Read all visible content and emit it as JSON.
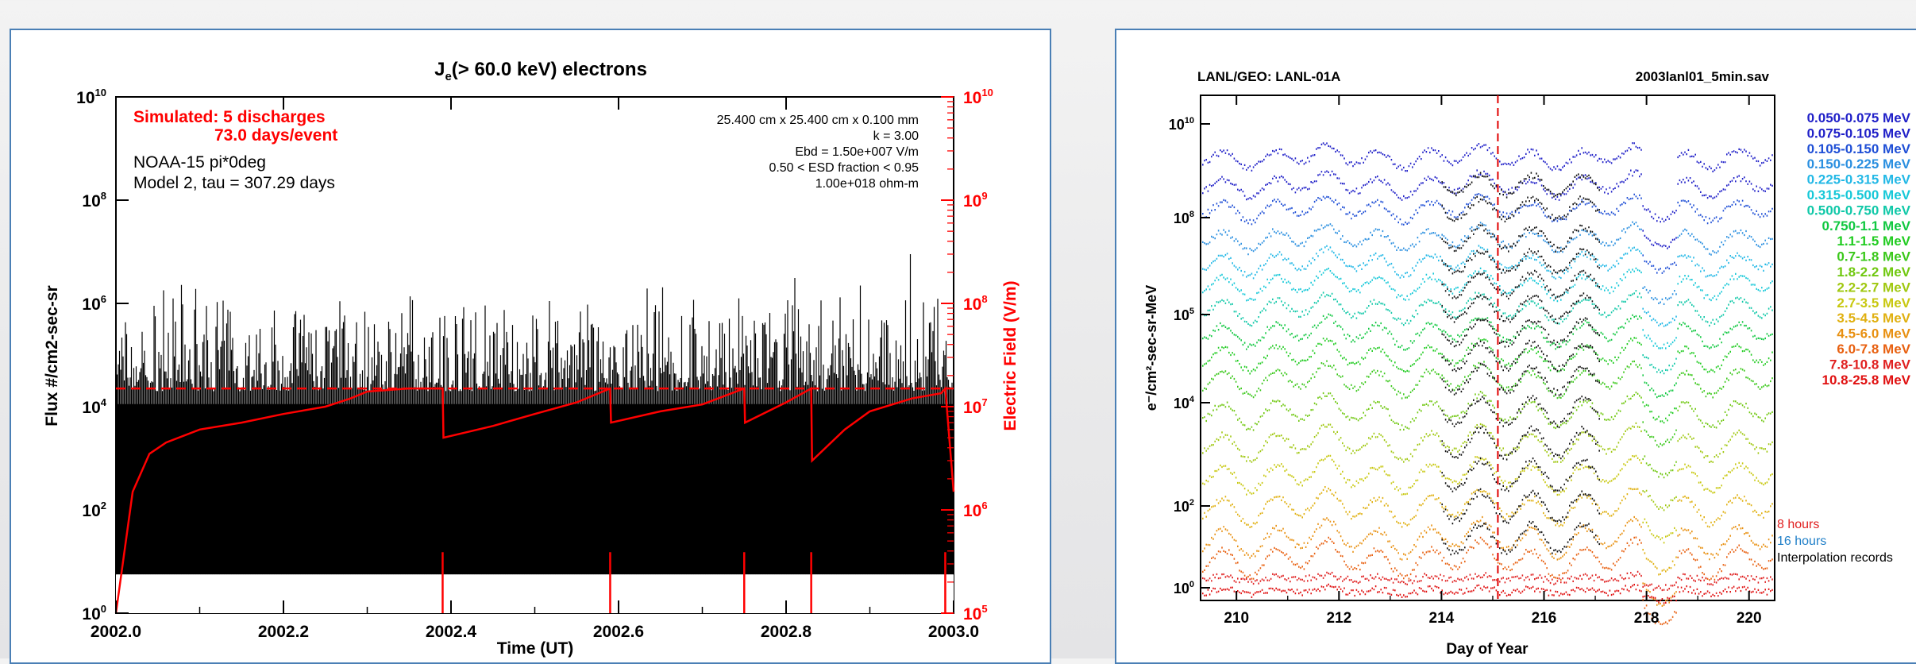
{
  "left_chart": {
    "title_main": "J",
    "title_sub": "e",
    "title_rest": "(> 60.0 keV) electrons",
    "annotation_red_1": "Simulated:  5 discharges",
    "annotation_red_2": "73.0 days/event",
    "annotation_black_1": "NOAA-15 pi*0deg",
    "annotation_black_2": "Model 2, tau =    307.29 days",
    "params": [
      "25.400 cm x  25.400 cm x   0.100 mm",
      "k =   3.00",
      "Ebd =  1.50e+007 V/m",
      "0.50 < ESD fraction <   0.95",
      "1.00e+018 ohm-m"
    ],
    "xlabel": "Time (UT)",
    "ylabel_left": "Flux #/cm2-sec-sr",
    "ylabel_right": "Electric Field (V/m)",
    "x_ticks": [
      "2002.0",
      "2002.2",
      "2002.4",
      "2002.6",
      "2002.8",
      "2003.0"
    ],
    "y_left_ticks": [
      {
        "base": "10",
        "exp": "0"
      },
      {
        "base": "10",
        "exp": "2"
      },
      {
        "base": "10",
        "exp": "4"
      },
      {
        "base": "10",
        "exp": "6"
      },
      {
        "base": "10",
        "exp": "8"
      },
      {
        "base": "10",
        "exp": "10"
      }
    ],
    "y_right_ticks": [
      {
        "base": "10",
        "exp": "5"
      },
      {
        "base": "10",
        "exp": "6"
      },
      {
        "base": "10",
        "exp": "7"
      },
      {
        "base": "10",
        "exp": "8"
      },
      {
        "base": "10",
        "exp": "9"
      },
      {
        "base": "10",
        "exp": "10"
      }
    ]
  },
  "right_chart": {
    "header_left": "LANL/GEO: LANL-01A",
    "header_right": "2003lanl01_5min.sav",
    "xlabel": "Day of Year",
    "ylabel": "e⁻/cm²-sec-sr-MeV",
    "x_ticks": [
      "210",
      "212",
      "214",
      "216",
      "218",
      "220"
    ],
    "y_ticks": [
      {
        "base": "10",
        "exp": "0"
      },
      {
        "base": "10",
        "exp": "2"
      },
      {
        "base": "10",
        "exp": "4"
      },
      {
        "base": "10",
        "exp": "5"
      },
      {
        "base": "10",
        "exp": "8"
      },
      {
        "base": "10",
        "exp": "10"
      }
    ],
    "legend": [
      {
        "label": "0.050-0.075 MeV",
        "color": "#2020c8"
      },
      {
        "label": "0.075-0.105 MeV",
        "color": "#2020c8"
      },
      {
        "label": "0.105-0.150 MeV",
        "color": "#1f4fd6"
      },
      {
        "label": "0.150-0.225 MeV",
        "color": "#2a8fe0"
      },
      {
        "label": "0.225-0.315 MeV",
        "color": "#22b8e6"
      },
      {
        "label": "0.315-0.500 MeV",
        "color": "#16c8d8"
      },
      {
        "label": "0.500-0.750 MeV",
        "color": "#10c8a8"
      },
      {
        "label": "0.750-1.1 MeV",
        "color": "#10c840"
      },
      {
        "label": "1.1-1.5 MeV",
        "color": "#22cc22"
      },
      {
        "label": "0.7-1.8 MeV",
        "color": "#3ac81a"
      },
      {
        "label": "1.8-2.2 MeV",
        "color": "#70c810"
      },
      {
        "label": "2.2-2.7 MeV",
        "color": "#a0c810"
      },
      {
        "label": "2.7-3.5 MeV",
        "color": "#c8c810"
      },
      {
        "label": "3.5-4.5 MeV",
        "color": "#e0b010"
      },
      {
        "label": "4.5-6.0 MeV",
        "color": "#e89010"
      },
      {
        "label": "6.0-7.8 MeV",
        "color": "#e86010"
      },
      {
        "label": "7.8-10.8 MeV",
        "color": "#e02020"
      },
      {
        "label": "10.8-25.8 MeV",
        "color": "#e01010"
      }
    ],
    "note_8h": "8 hours",
    "note_16h": "16 hours",
    "note_interp": "Interpolation records"
  },
  "chart_data": [
    {
      "type": "line",
      "title": "Je(> 60.0 keV) electrons",
      "xlabel": "Time (UT)",
      "ylabel": "Flux #/cm2-sec-sr",
      "y2label": "Electric Field (V/m)",
      "xlim": [
        2002.0,
        2003.0
      ],
      "ylim_log10": [
        0,
        10
      ],
      "y2lim_log10": [
        5,
        10
      ],
      "yscale": "log",
      "series": [
        {
          "name": "Electric Field",
          "color": "#ff0000",
          "x": [
            2002.0,
            2002.02,
            2002.04,
            2002.06,
            2002.1,
            2002.15,
            2002.2,
            2002.25,
            2002.28,
            2002.3,
            2002.35,
            2002.39,
            2002.391,
            2002.45,
            2002.5,
            2002.55,
            2002.59,
            2002.591,
            2002.65,
            2002.7,
            2002.75,
            2002.751,
            2002.8,
            2002.83,
            2002.831,
            2002.87,
            2002.9,
            2002.95,
            2002.985,
            2002.99,
            2003.0
          ],
          "y": [
            100000,
            1500000,
            3500000,
            4500000,
            6000000,
            7000000,
            8500000,
            10000000,
            12000000,
            14000000,
            15000000,
            15000000,
            5000000,
            6500000,
            8500000,
            11000000,
            15000000,
            7000000,
            9000000,
            10500000,
            15000000,
            7000000,
            11000000,
            15000000,
            3000000,
            6000000,
            9000000,
            12000000,
            13500000,
            15000000,
            1500000
          ]
        },
        {
          "name": "Ebd threshold",
          "color": "#ff0000",
          "dashed": true,
          "x": [
            2002.0,
            2003.0
          ],
          "y": [
            15000000,
            15000000
          ]
        }
      ],
      "discharges_x": [
        2002.39,
        2002.59,
        2002.75,
        2002.83,
        2002.99
      ]
    },
    {
      "type": "scatter",
      "xlabel": "Day of Year",
      "ylabel": "e-/cm2-sec-sr-MeV",
      "xlim": [
        209.3,
        220.5
      ],
      "ylim_log10": [
        0,
        10
      ],
      "yscale": "log",
      "marker_day": 215.1
    }
  ]
}
